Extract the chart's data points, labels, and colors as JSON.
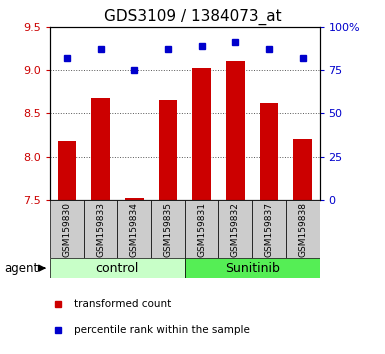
{
  "title": "GDS3109 / 1384073_at",
  "samples": [
    "GSM159830",
    "GSM159833",
    "GSM159834",
    "GSM159835",
    "GSM159831",
    "GSM159832",
    "GSM159837",
    "GSM159838"
  ],
  "bar_values": [
    8.18,
    8.68,
    7.52,
    8.65,
    9.02,
    9.1,
    8.62,
    8.2
  ],
  "dot_percentiles": [
    82,
    87,
    75,
    87,
    89,
    91,
    87,
    82
  ],
  "groups": [
    {
      "label": "control",
      "start": 0,
      "end": 4,
      "color": "#c8ffc8"
    },
    {
      "label": "Sunitinib",
      "start": 4,
      "end": 8,
      "color": "#55ee55"
    }
  ],
  "ylim_left": [
    7.5,
    9.5
  ],
  "ylim_right": [
    0,
    100
  ],
  "yticks_left": [
    7.5,
    8.0,
    8.5,
    9.0,
    9.5
  ],
  "yticks_right": [
    0,
    25,
    50,
    75,
    100
  ],
  "bar_color": "#cc0000",
  "dot_color": "#0000cc",
  "grid_color": "#555555",
  "left_tick_color": "#cc0000",
  "right_tick_color": "#0000cc",
  "legend_bar_label": "transformed count",
  "legend_dot_label": "percentile rank within the sample",
  "agent_label": "agent",
  "title_fontsize": 11,
  "tick_fontsize": 8,
  "sample_fontsize": 6.5,
  "group_fontsize": 9,
  "legend_fontsize": 7.5
}
